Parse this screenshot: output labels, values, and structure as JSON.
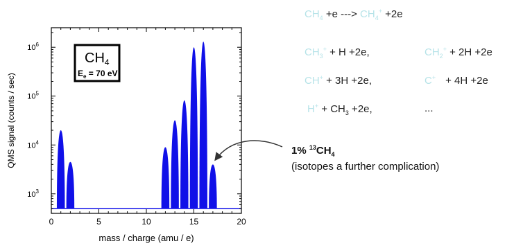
{
  "chart_data": {
    "type": "area",
    "xlabel": "mass / charge (amu / e)",
    "ylabel": "QMS signal (counts / sec)",
    "xlim": [
      0,
      20
    ],
    "ylim_log10": [
      2.6,
      6.4
    ],
    "y_scale": "log",
    "x_ticks": [
      "0",
      "5",
      "10",
      "15",
      "20"
    ],
    "y_ticks": [
      {
        "exp": 3,
        "label": "10",
        "sup": "3"
      },
      {
        "exp": 4,
        "label": "10",
        "sup": "4"
      },
      {
        "exp": 5,
        "label": "10",
        "sup": "5"
      },
      {
        "exp": 6,
        "label": "10",
        "sup": "6"
      }
    ],
    "baseline": 500,
    "peaks": [
      {
        "x": 1,
        "y": 20000
      },
      {
        "x": 2,
        "y": 4500
      },
      {
        "x": 12,
        "y": 9000
      },
      {
        "x": 13,
        "y": 32000
      },
      {
        "x": 14,
        "y": 82000
      },
      {
        "x": 15,
        "y": 1000000
      },
      {
        "x": 16,
        "y": 1300000
      },
      {
        "x": 17,
        "y": 4000
      }
    ],
    "fill_color": "#1010e8",
    "inset": {
      "molecule": "CH",
      "molecule_sub": "4",
      "energy_pre": "E",
      "energy_sub": "e",
      "energy_post": " = 70 eV"
    }
  },
  "reactions": {
    "r1": {
      "a": "CH",
      "a_sub": "4",
      "b": " +e ---> ",
      "c": "CH",
      "c_sub": "4",
      "c_sup": "+",
      "d": " +2e"
    },
    "r2": {
      "a": "CH",
      "a_sub": "3",
      "a_sup": "+",
      "b": " + H +2e,",
      "c": "CH",
      "c_sub": "2",
      "c_sup": "+",
      "d": " + 2H +2e"
    },
    "r3": {
      "a": "CH",
      "a_sup": "+",
      "b": " + 3H +2e,",
      "c": "C",
      "c_sup": "+",
      "d": "+ 4H +2e"
    },
    "r4": {
      "a": "H",
      "a_sup": "+",
      "b": " + CH",
      "b_sub": "3",
      "c": " +2e,",
      "d": "..."
    }
  },
  "annotation": {
    "pct": "1% ",
    "iso_sup": "13",
    "iso": "CH",
    "iso_sub": "4",
    "note": "(isotopes a further complication)",
    "arrow_color": "#333333"
  },
  "colors": {
    "light_blue": "#b6e3e8"
  }
}
